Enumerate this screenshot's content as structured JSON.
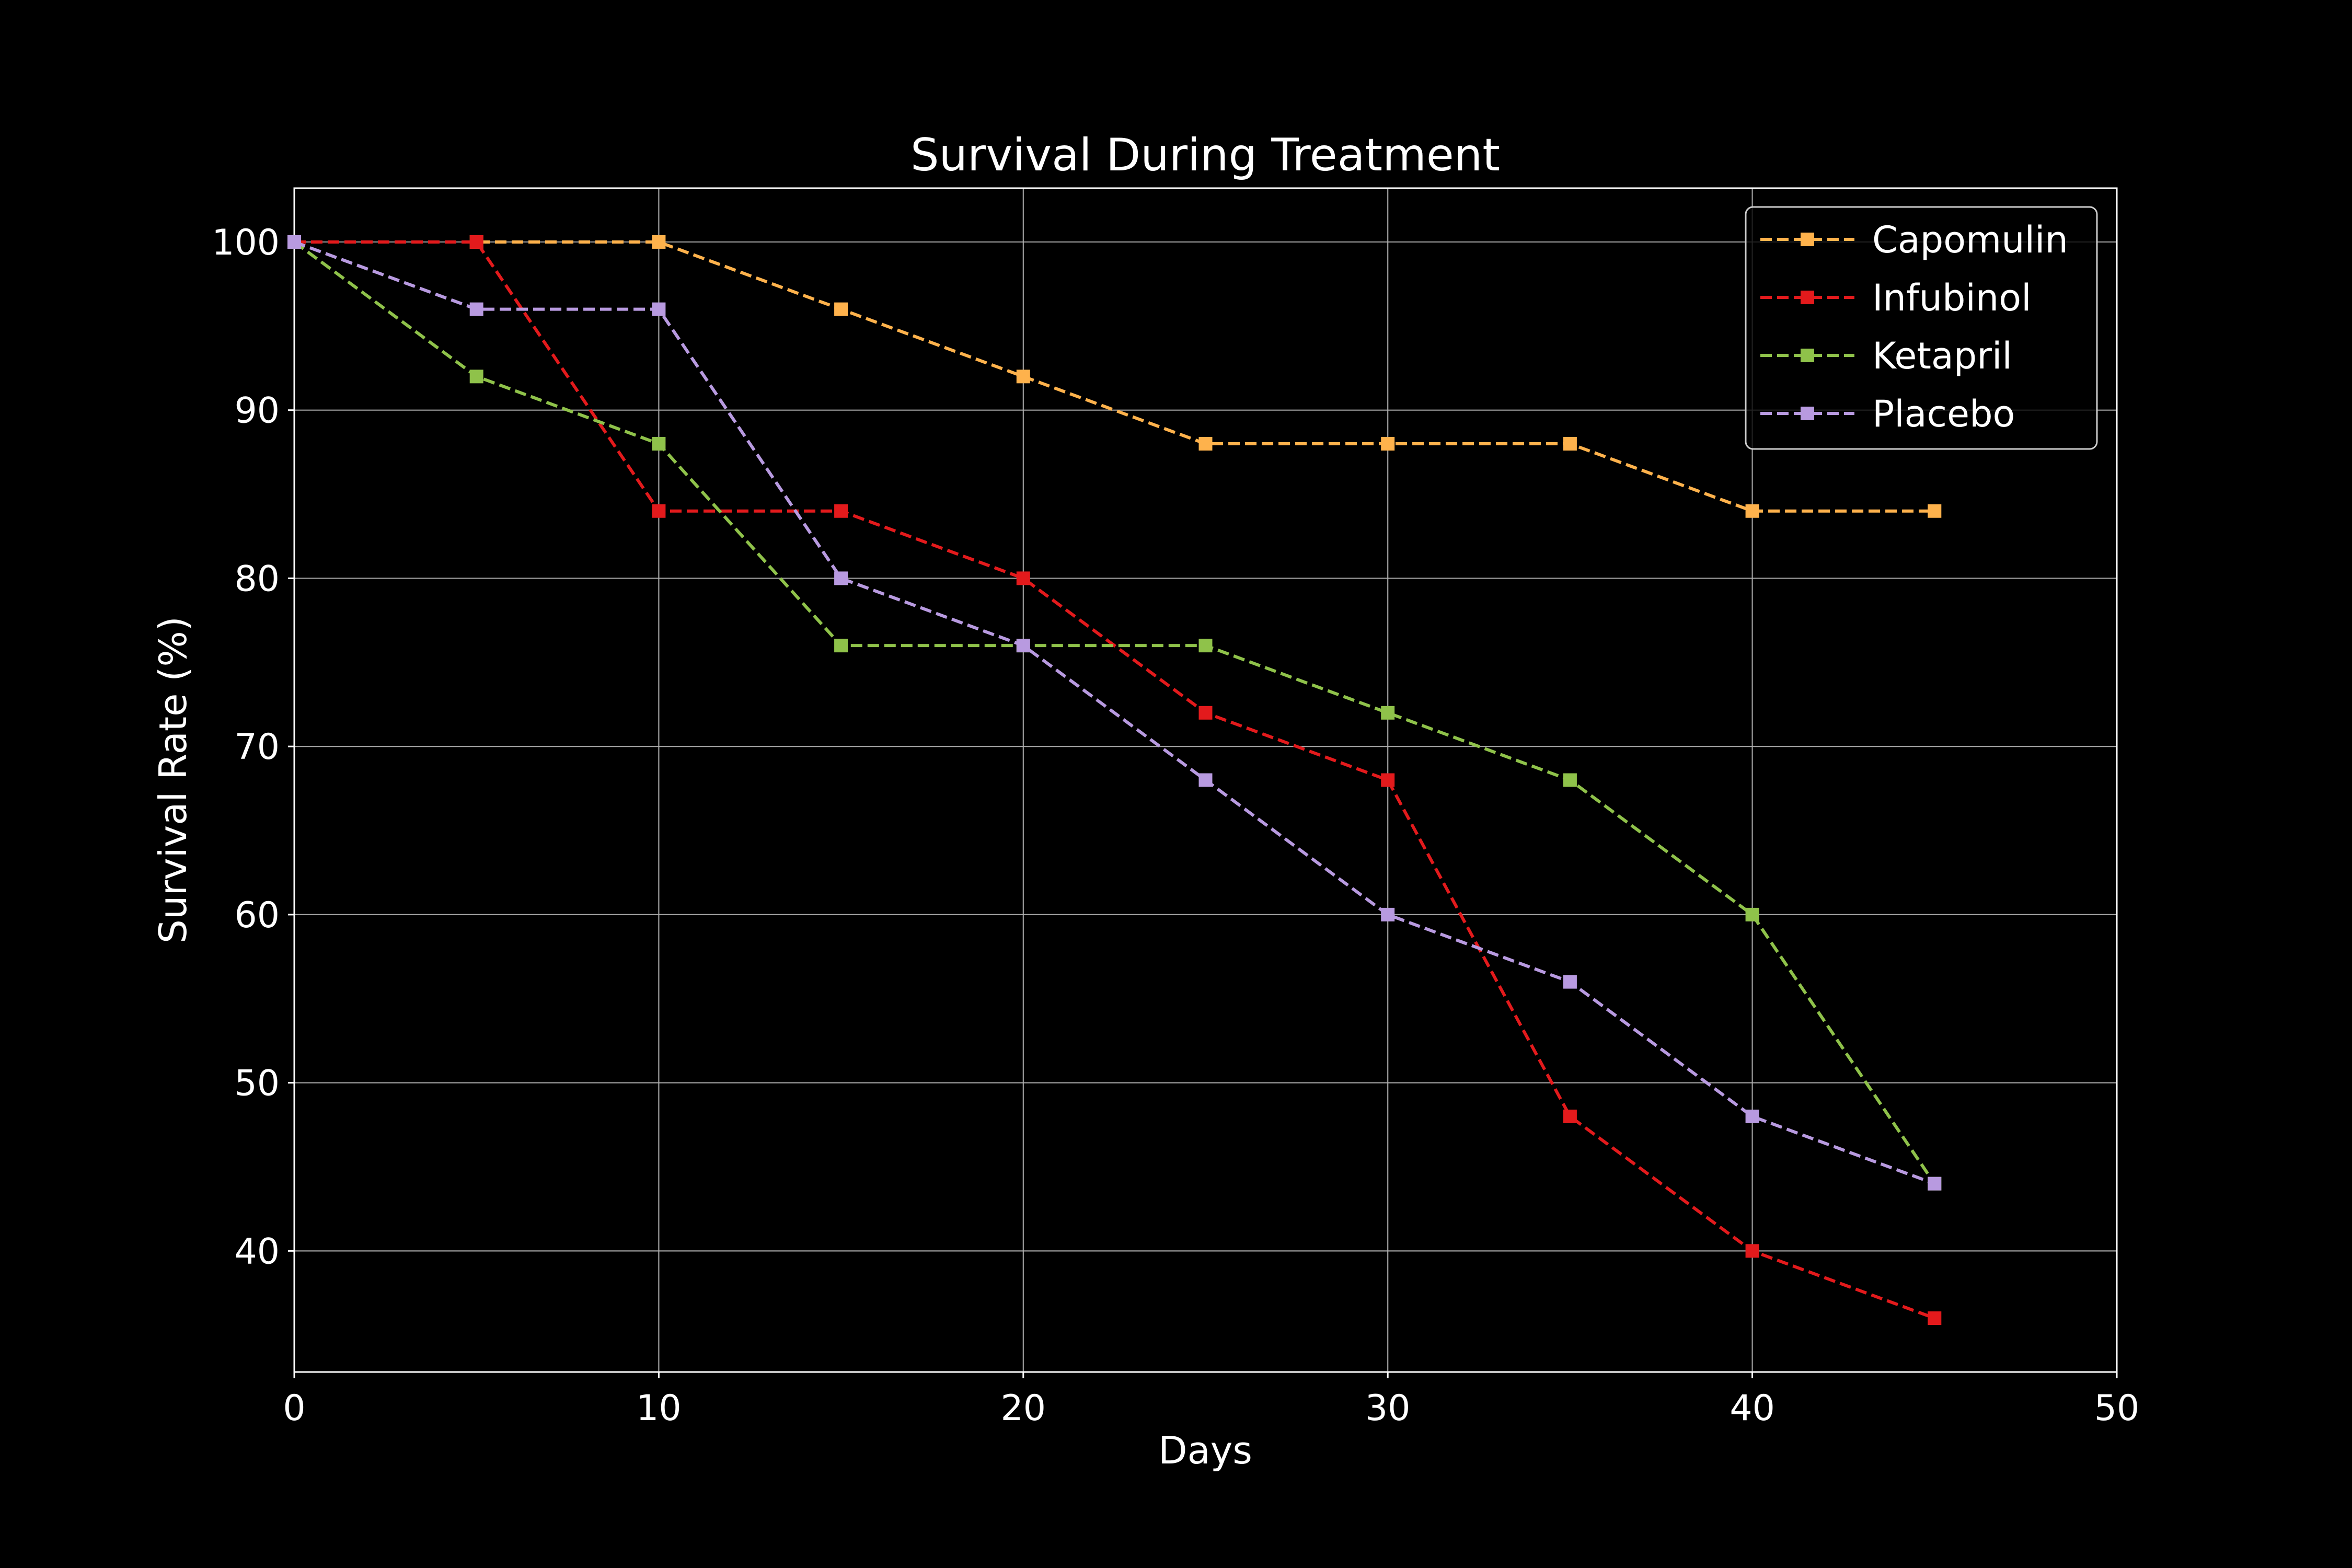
{
  "chart_data": {
    "type": "line",
    "title": "Survival During Treatment",
    "xlabel": "Days",
    "ylabel": "Survival Rate (%)",
    "xlim": [
      0,
      50
    ],
    "ylim": [
      32.8,
      103.2
    ],
    "xticks": [
      0,
      10,
      20,
      30,
      40,
      50
    ],
    "yticks": [
      40,
      50,
      60,
      70,
      80,
      90,
      100
    ],
    "x": [
      0,
      5,
      10,
      15,
      20,
      25,
      30,
      35,
      40,
      45
    ],
    "grid": true,
    "legend": "top-right",
    "background": "#000000",
    "foreground": "#ffffff",
    "line_style": "dashed",
    "marker": "square",
    "series": [
      {
        "name": "Capomulin",
        "color": "#feb24c",
        "values": [
          100,
          100,
          100,
          96,
          92,
          88,
          88,
          88,
          84,
          84
        ]
      },
      {
        "name": "Infubinol",
        "color": "#e31a1c",
        "values": [
          100,
          100,
          84,
          84,
          80,
          72,
          68,
          48,
          40,
          36
        ]
      },
      {
        "name": "Ketapril",
        "color": "#8fc24a",
        "values": [
          100,
          92,
          88,
          76,
          76,
          76,
          72,
          68,
          60,
          44
        ]
      },
      {
        "name": "Placebo",
        "color": "#b89ae0",
        "values": [
          100,
          96,
          96,
          80,
          76,
          68,
          60,
          56,
          48,
          44
        ]
      }
    ]
  }
}
